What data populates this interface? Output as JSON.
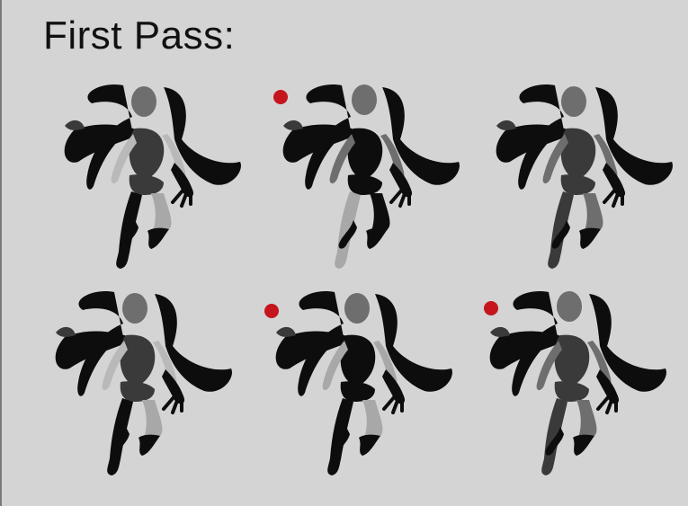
{
  "title": "First Pass:",
  "colors": {
    "background": "#d4d4d4",
    "silhouette": "#0d0d0d",
    "dark_gray": "#3a3a3a",
    "mid_gray": "#6e6e6e",
    "light_gray": "#a8a8a8",
    "skin": "#b9b9b9",
    "marker": "#c4161c"
  },
  "figures": [
    {
      "variant": 1,
      "marked": false,
      "palette": "light"
    },
    {
      "variant": 2,
      "marked": true,
      "palette": "split"
    },
    {
      "variant": 3,
      "marked": false,
      "palette": "mid"
    },
    {
      "variant": 4,
      "marked": false,
      "palette": "suit"
    },
    {
      "variant": 5,
      "marked": true,
      "palette": "strappy"
    },
    {
      "variant": 6,
      "marked": true,
      "palette": "dark"
    }
  ]
}
